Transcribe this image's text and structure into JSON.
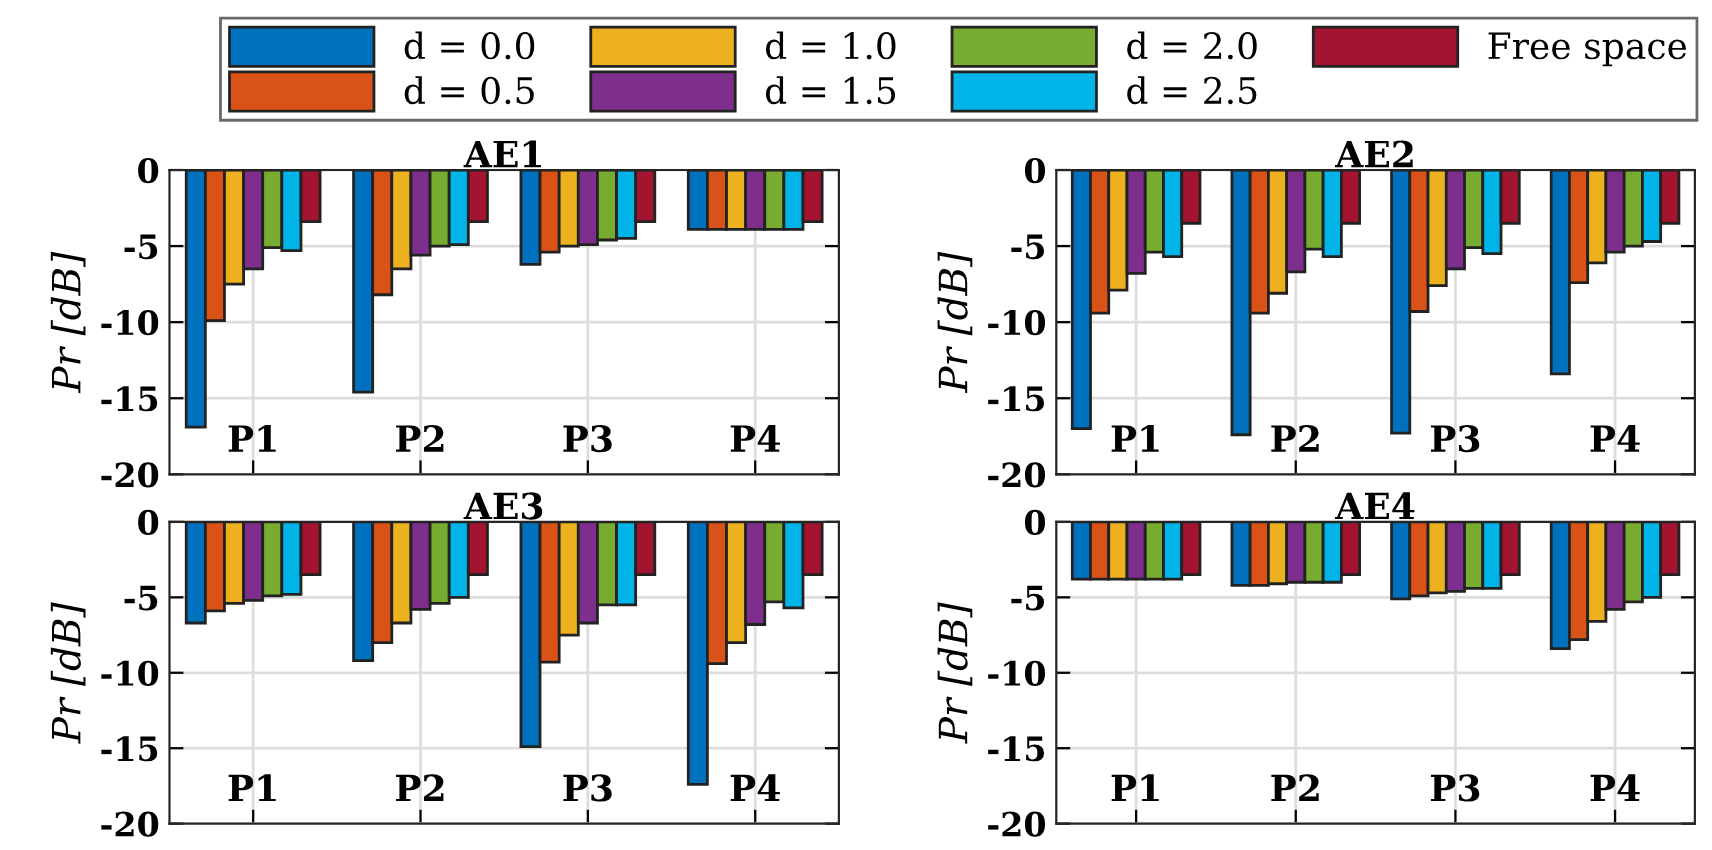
{
  "chart_data": [
    {
      "type": "bar",
      "title": "AE1",
      "ylabel": "Pr [dB]",
      "categories": [
        "P1",
        "P2",
        "P3",
        "P4"
      ],
      "ylim": [
        -20,
        0
      ],
      "yticks": [
        -20,
        -15,
        -10,
        -5,
        0
      ],
      "grid": true,
      "legend": "top",
      "series": [
        {
          "name": "d = 0.0",
          "color": "#0072bd",
          "values": [
            -16.9,
            -14.6,
            -6.2,
            -3.9
          ]
        },
        {
          "name": "d = 0.5",
          "color": "#d95319",
          "values": [
            -9.9,
            -8.2,
            -5.4,
            -3.9
          ]
        },
        {
          "name": "d = 1.0",
          "color": "#edb120",
          "values": [
            -7.5,
            -6.5,
            -5.0,
            -3.9
          ]
        },
        {
          "name": "d = 1.5",
          "color": "#7e2f8e",
          "values": [
            -6.5,
            -5.6,
            -4.9,
            -3.9
          ]
        },
        {
          "name": "d = 2.0",
          "color": "#77ac30",
          "values": [
            -5.1,
            -5.0,
            -4.6,
            -3.9
          ]
        },
        {
          "name": "d = 2.5",
          "color": "#00b4e8",
          "values": [
            -5.3,
            -4.9,
            -4.5,
            -3.9
          ]
        },
        {
          "name": "Free space",
          "color": "#a2142f",
          "values": [
            -3.4,
            -3.4,
            -3.4,
            -3.4
          ]
        }
      ]
    },
    {
      "type": "bar",
      "title": "AE2",
      "ylabel": "Pr [dB]",
      "categories": [
        "P1",
        "P2",
        "P3",
        "P4"
      ],
      "ylim": [
        -20,
        0
      ],
      "yticks": [
        -20,
        -15,
        -10,
        -5,
        0
      ],
      "grid": true,
      "series": [
        {
          "color": "#0072bd",
          "values": [
            -17.0,
            -17.4,
            -17.3,
            -13.4
          ]
        },
        {
          "color": "#d95319",
          "values": [
            -9.4,
            -9.4,
            -9.3,
            -7.4
          ]
        },
        {
          "color": "#edb120",
          "values": [
            -7.9,
            -8.1,
            -7.6,
            -6.1
          ]
        },
        {
          "color": "#7e2f8e",
          "values": [
            -6.8,
            -6.7,
            -6.5,
            -5.4
          ]
        },
        {
          "color": "#77ac30",
          "values": [
            -5.4,
            -5.2,
            -5.1,
            -5.0
          ]
        },
        {
          "color": "#00b4e8",
          "values": [
            -5.7,
            -5.7,
            -5.5,
            -4.7
          ]
        },
        {
          "color": "#a2142f",
          "values": [
            -3.5,
            -3.5,
            -3.5,
            -3.5
          ]
        }
      ]
    },
    {
      "type": "bar",
      "title": "AE3",
      "ylabel": "Pr [dB]",
      "categories": [
        "P1",
        "P2",
        "P3",
        "P4"
      ],
      "ylim": [
        -20,
        0
      ],
      "yticks": [
        -20,
        -15,
        -10,
        -5,
        0
      ],
      "grid": true,
      "series": [
        {
          "color": "#0072bd",
          "values": [
            -6.7,
            -9.2,
            -14.9,
            -17.4
          ]
        },
        {
          "color": "#d95319",
          "values": [
            -5.9,
            -8.0,
            -9.3,
            -9.4
          ]
        },
        {
          "color": "#edb120",
          "values": [
            -5.4,
            -6.7,
            -7.5,
            -8.0
          ]
        },
        {
          "color": "#7e2f8e",
          "values": [
            -5.2,
            -5.8,
            -6.7,
            -6.8
          ]
        },
        {
          "color": "#77ac30",
          "values": [
            -4.9,
            -5.4,
            -5.5,
            -5.3
          ]
        },
        {
          "color": "#00b4e8",
          "values": [
            -4.8,
            -5.0,
            -5.5,
            -5.7
          ]
        },
        {
          "color": "#a2142f",
          "values": [
            -3.5,
            -3.5,
            -3.5,
            -3.5
          ]
        }
      ]
    },
    {
      "type": "bar",
      "title": "AE4",
      "ylabel": "Pr [dB]",
      "categories": [
        "P1",
        "P2",
        "P3",
        "P4"
      ],
      "ylim": [
        -20,
        0
      ],
      "yticks": [
        -20,
        -15,
        -10,
        -5,
        0
      ],
      "grid": true,
      "series": [
        {
          "color": "#0072bd",
          "values": [
            -3.8,
            -4.2,
            -5.1,
            -8.4
          ]
        },
        {
          "color": "#d95319",
          "values": [
            -3.8,
            -4.2,
            -4.9,
            -7.8
          ]
        },
        {
          "color": "#edb120",
          "values": [
            -3.8,
            -4.1,
            -4.7,
            -6.6
          ]
        },
        {
          "color": "#7e2f8e",
          "values": [
            -3.8,
            -4.0,
            -4.6,
            -5.8
          ]
        },
        {
          "color": "#77ac30",
          "values": [
            -3.8,
            -4.0,
            -4.4,
            -5.3
          ]
        },
        {
          "color": "#00b4e8",
          "values": [
            -3.8,
            -4.0,
            -4.4,
            -5.0
          ]
        },
        {
          "color": "#a2142f",
          "values": [
            -3.5,
            -3.5,
            -3.5,
            -3.5
          ]
        }
      ]
    }
  ]
}
